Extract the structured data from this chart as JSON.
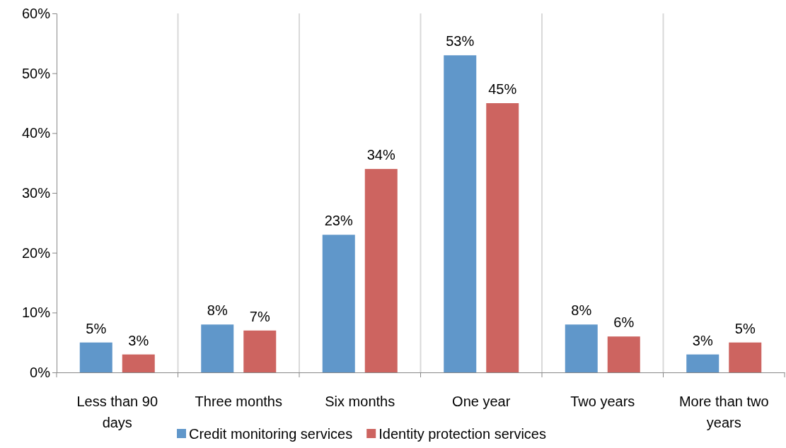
{
  "chart_data": {
    "type": "bar",
    "categories": [
      "Less than 90 days",
      "Three months",
      "Six months",
      "One year",
      "Two years",
      "More than two years"
    ],
    "series": [
      {
        "name": "Credit monitoring services",
        "color": "#6097ca",
        "values": [
          5,
          8,
          23,
          53,
          8,
          3
        ],
        "value_labels": [
          "5%",
          "8%",
          "23%",
          "53%",
          "8%",
          "3%"
        ]
      },
      {
        "name": "Identity protection services",
        "color": "#cd6460",
        "values": [
          3,
          7,
          34,
          45,
          6,
          5
        ],
        "value_labels": [
          "3%",
          "7%",
          "34%",
          "45%",
          "6%",
          "5%"
        ]
      }
    ],
    "ylim": [
      0,
      60
    ],
    "yticks": [
      {
        "value": 0,
        "label": "0%"
      },
      {
        "value": 10,
        "label": "10%"
      },
      {
        "value": 20,
        "label": "20%"
      },
      {
        "value": 30,
        "label": "30%"
      },
      {
        "value": 40,
        "label": "40%"
      },
      {
        "value": 50,
        "label": "50%"
      },
      {
        "value": 60,
        "label": "60%"
      }
    ],
    "grid": "x",
    "legend": "bottom"
  }
}
